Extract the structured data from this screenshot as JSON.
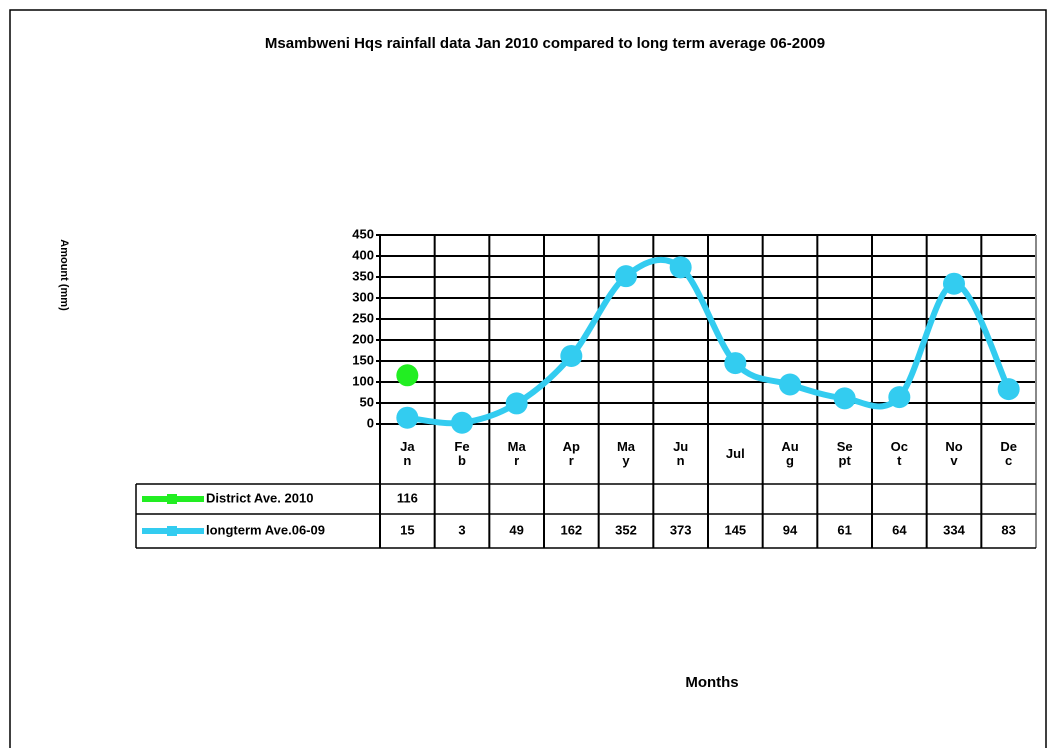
{
  "chart_data": {
    "type": "line",
    "title": "Msambweni Hqs rainfall data Jan 2010 compared to long term average 06-2009",
    "y_label": "Amount (mm)",
    "x_label": "Months",
    "categories": [
      "Jan",
      "Feb",
      "Mar",
      "Apr",
      "May",
      "Jun",
      "Jul",
      "Aug",
      "Sept",
      "Oct",
      "Nov",
      "Dec"
    ],
    "series": [
      {
        "name": "District Ave. 2010",
        "color": "#22ee22",
        "values": [
          116,
          null,
          null,
          null,
          null,
          null,
          null,
          null,
          null,
          null,
          null,
          null
        ]
      },
      {
        "name": "longterm Ave.06-09",
        "color": "#33ccf0",
        "values": [
          15,
          3,
          49,
          162,
          352,
          373,
          145,
          94,
          61,
          64,
          334,
          83
        ]
      }
    ],
    "ylim": [
      0,
      450
    ],
    "yticks": [
      0,
      50,
      100,
      150,
      200,
      250,
      300,
      350,
      400,
      450
    ],
    "grid": true
  }
}
